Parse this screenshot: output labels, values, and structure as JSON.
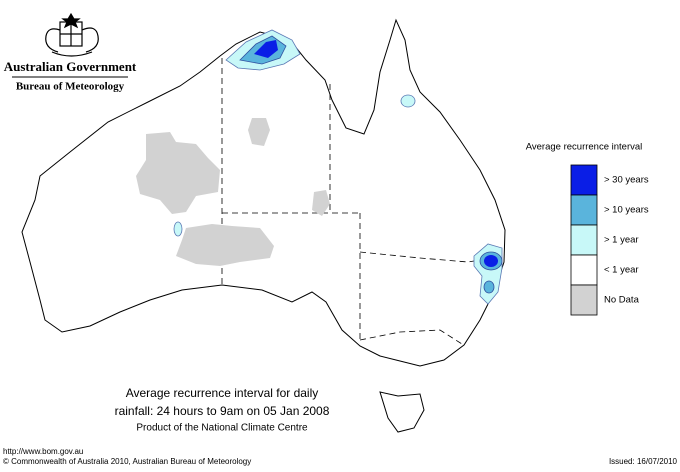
{
  "header": {
    "title": "Australian Government",
    "subtitle": "Bureau of Meteorology"
  },
  "legend": {
    "title": "Average recurrence interval",
    "items": [
      {
        "label": "> 30 years",
        "color": "#0a1ee6"
      },
      {
        "label": "> 10 years",
        "color": "#5ab4dc"
      },
      {
        "label": "> 1 year",
        "color": "#c8f8f8"
      },
      {
        "label": "< 1 year",
        "color": "#ffffff"
      },
      {
        "label": "No Data",
        "color": "#d2d2d2"
      }
    ]
  },
  "caption": {
    "lines": [
      "Average recurrence interval for daily",
      "rainfall: 24 hours to 9am on 05 Jan 2008"
    ],
    "credit": "Product of the National Climate Centre"
  },
  "footer": {
    "url": "http://www.bom.gov.au",
    "copyright": "© Commonwealth of Australia 2010, Australian Bureau of Meteorology",
    "issued": "Issued: 16/07/2010"
  }
}
